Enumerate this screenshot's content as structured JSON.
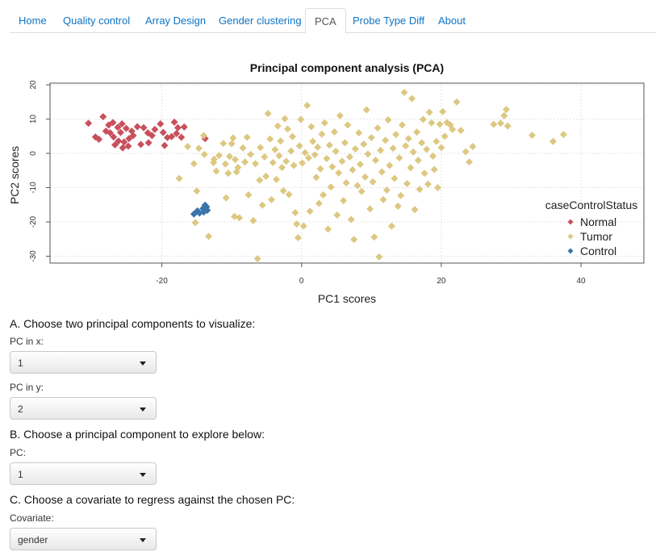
{
  "tabs": [
    {
      "label": "Home",
      "active": false
    },
    {
      "label": "Quality control",
      "active": false
    },
    {
      "label": "Array Design",
      "active": false
    },
    {
      "label": "Gender clustering",
      "active": false
    },
    {
      "label": "PCA",
      "active": true
    },
    {
      "label": "Probe Type Diff",
      "active": false
    },
    {
      "label": "About",
      "active": false
    }
  ],
  "controls": {
    "section_a": "A. Choose two principal components to visualize:",
    "pc_x_label": "PC in x:",
    "pc_x_value": "1",
    "pc_y_label": "PC in y:",
    "pc_y_value": "2",
    "section_b": "B. Choose a principal component to explore below:",
    "pc_label": "PC:",
    "pc_value": "1",
    "section_c": "C. Choose a covariate to regress against the chosen PC:",
    "covariate_label": "Covariate:",
    "covariate_value": "gender"
  },
  "chart_data": {
    "type": "scatter",
    "title": "Principal component analysis (PCA)",
    "xlabel": "PC1 scores",
    "ylabel": "PC2 scores",
    "xlim": [
      -36,
      49
    ],
    "ylim": [
      -32,
      20.5
    ],
    "xticks": [
      -20,
      0,
      20,
      40
    ],
    "yticks": [
      -30,
      -20,
      -10,
      0,
      10,
      20
    ],
    "grid": true,
    "legend": {
      "title": "caseControlStatus",
      "placement": "right"
    },
    "series": [
      {
        "name": "Normal",
        "color": "#c8505c",
        "points": [
          [
            -30.5,
            8.8
          ],
          [
            -28.4,
            10.7
          ],
          [
            -29.5,
            4.8
          ],
          [
            -29.0,
            4.1
          ],
          [
            -28.0,
            6.5
          ],
          [
            -27.6,
            8.3
          ],
          [
            -27.0,
            9.0
          ],
          [
            -26.3,
            7.6
          ],
          [
            -25.7,
            8.6
          ],
          [
            -25.1,
            7.3
          ],
          [
            -26.9,
            4.8
          ],
          [
            -26.2,
            3.6
          ],
          [
            -25.4,
            3.3
          ],
          [
            -24.7,
            4.3
          ],
          [
            -24.1,
            5.2
          ],
          [
            -25.9,
            6.1
          ],
          [
            -27.4,
            6.0
          ],
          [
            -26.7,
            2.5
          ],
          [
            -25.6,
            1.6
          ],
          [
            -24.8,
            2.1
          ],
          [
            -24.3,
            6.5
          ],
          [
            -23.5,
            7.8
          ],
          [
            -22.6,
            7.5
          ],
          [
            -22.0,
            6.0
          ],
          [
            -21.4,
            5.2
          ],
          [
            -21.0,
            7.0
          ],
          [
            -20.2,
            8.6
          ],
          [
            -19.8,
            6.1
          ],
          [
            -19.2,
            4.6
          ],
          [
            -21.9,
            3.1
          ],
          [
            -23.0,
            2.6
          ],
          [
            -19.6,
            2.3
          ],
          [
            -18.2,
            9.1
          ],
          [
            -17.7,
            7.5
          ],
          [
            -18.6,
            4.9
          ],
          [
            -17.9,
            5.8
          ],
          [
            -17.2,
            4.7
          ],
          [
            -16.8,
            7.7
          ],
          [
            -13.8,
            4.3
          ]
        ]
      },
      {
        "name": "Tumor",
        "color": "#ddc882",
        "points": [
          [
            -17.5,
            -7.3
          ],
          [
            -16.3,
            2.0
          ],
          [
            -15.4,
            -3.0
          ],
          [
            -15.0,
            -11.0
          ],
          [
            -15.2,
            -20.2
          ],
          [
            -14.7,
            1.5
          ],
          [
            -14.0,
            5.2
          ],
          [
            -13.9,
            -0.3
          ],
          [
            -13.3,
            -24.2
          ],
          [
            -12.5,
            -1.7
          ],
          [
            -12.2,
            -5.2
          ],
          [
            -12.6,
            -2.7
          ],
          [
            -11.8,
            -0.6
          ],
          [
            -11.2,
            2.9
          ],
          [
            -10.9,
            -3.1
          ],
          [
            -10.5,
            -5.8
          ],
          [
            -10.3,
            -0.9
          ],
          [
            -10.8,
            -13.0
          ],
          [
            -10.0,
            2.8
          ],
          [
            -9.6,
            -18.4
          ],
          [
            -9.3,
            -5.4
          ],
          [
            -9.5,
            -1.8
          ],
          [
            -9.8,
            4.5
          ],
          [
            -9.1,
            -4.1
          ],
          [
            -8.9,
            -18.8
          ],
          [
            -8.4,
            1.6
          ],
          [
            -8.1,
            -2.5
          ],
          [
            -7.8,
            4.7
          ],
          [
            -7.6,
            -12.1
          ],
          [
            -7.3,
            -0.3
          ],
          [
            -6.9,
            -19.6
          ],
          [
            -6.6,
            -3.0
          ],
          [
            -6.3,
            -30.7
          ],
          [
            -6.0,
            -7.8
          ],
          [
            -5.9,
            1.7
          ],
          [
            -5.6,
            -15.1
          ],
          [
            -5.3,
            -1.0
          ],
          [
            -5.1,
            -6.7
          ],
          [
            -4.8,
            11.6
          ],
          [
            -4.5,
            4.2
          ],
          [
            -4.3,
            -13.5
          ],
          [
            -4.1,
            -2.7
          ],
          [
            -3.8,
            1.1
          ],
          [
            -3.6,
            -7.6
          ],
          [
            -3.4,
            8.0
          ],
          [
            -3.2,
            -0.7
          ],
          [
            -3.0,
            3.6
          ],
          [
            -2.8,
            -4.1
          ],
          [
            -2.6,
            -10.9
          ],
          [
            -2.4,
            10.1
          ],
          [
            -2.2,
            -2.3
          ],
          [
            -2.0,
            7.1
          ],
          [
            -1.8,
            -12.0
          ],
          [
            -1.5,
            0.7
          ],
          [
            -1.3,
            4.9
          ],
          [
            -1.1,
            -3.5
          ],
          [
            -0.9,
            -17.3
          ],
          [
            -0.7,
            -20.6
          ],
          [
            -0.5,
            -24.6
          ],
          [
            -0.3,
            2.2
          ],
          [
            -0.1,
            9.9
          ],
          [
            0.1,
            -2.8
          ],
          [
            0.3,
            -21.2
          ],
          [
            0.5,
            0.2
          ],
          [
            0.8,
            14.0
          ],
          [
            1.0,
            -1.3
          ],
          [
            1.2,
            -16.9
          ],
          [
            1.4,
            7.8
          ],
          [
            1.6,
            3.5
          ],
          [
            1.9,
            -0.4
          ],
          [
            2.1,
            -7.0
          ],
          [
            2.3,
            1.8
          ],
          [
            2.5,
            -14.6
          ],
          [
            2.7,
            -4.5
          ],
          [
            2.9,
            5.6
          ],
          [
            3.1,
            -12.1
          ],
          [
            3.3,
            8.9
          ],
          [
            3.6,
            -1.5
          ],
          [
            3.8,
            -22.1
          ],
          [
            4.0,
            2.4
          ],
          [
            4.2,
            -9.8
          ],
          [
            4.4,
            -3.9
          ],
          [
            4.7,
            6.3
          ],
          [
            4.9,
            0.6
          ],
          [
            5.1,
            -18.0
          ],
          [
            5.3,
            -5.7
          ],
          [
            5.5,
            11.0
          ],
          [
            5.8,
            -2.3
          ],
          [
            6.0,
            -13.8
          ],
          [
            6.2,
            3.1
          ],
          [
            6.4,
            -8.6
          ],
          [
            6.6,
            8.3
          ],
          [
            6.9,
            -1.0
          ],
          [
            7.1,
            -19.3
          ],
          [
            7.3,
            -4.8
          ],
          [
            7.5,
            -25.1
          ],
          [
            7.7,
            1.3
          ],
          [
            8.0,
            -9.4
          ],
          [
            8.2,
            6.0
          ],
          [
            8.4,
            -3.2
          ],
          [
            8.6,
            -11.1
          ],
          [
            8.9,
            2.7
          ],
          [
            9.1,
            -6.9
          ],
          [
            9.3,
            12.7
          ],
          [
            9.5,
            -0.2
          ],
          [
            9.8,
            -16.2
          ],
          [
            10.0,
            4.6
          ],
          [
            10.2,
            -8.3
          ],
          [
            10.4,
            -24.4
          ],
          [
            10.6,
            -2.0
          ],
          [
            10.9,
            7.4
          ],
          [
            11.1,
            -30.2
          ],
          [
            11.3,
            0.9
          ],
          [
            11.5,
            -5.4
          ],
          [
            11.7,
            -13.5
          ],
          [
            12.0,
            3.8
          ],
          [
            12.2,
            -10.7
          ],
          [
            12.4,
            9.8
          ],
          [
            12.6,
            -3.5
          ],
          [
            12.9,
            -21.2
          ],
          [
            13.1,
            1.5
          ],
          [
            13.3,
            -7.3
          ],
          [
            13.5,
            5.5
          ],
          [
            13.8,
            -15.4
          ],
          [
            14.0,
            -1.3
          ],
          [
            14.2,
            -12.3
          ],
          [
            14.4,
            8.3
          ],
          [
            14.7,
            17.8
          ],
          [
            14.9,
            2.2
          ],
          [
            15.1,
            -8.8
          ],
          [
            15.3,
            4.3
          ],
          [
            15.6,
            -4.2
          ],
          [
            15.8,
            16.0
          ],
          [
            16.0,
            0.4
          ],
          [
            16.2,
            -16.4
          ],
          [
            16.5,
            6.2
          ],
          [
            16.7,
            -2.0
          ],
          [
            16.9,
            -10.5
          ],
          [
            17.2,
            3.1
          ],
          [
            17.4,
            9.9
          ],
          [
            17.6,
            -5.8
          ],
          [
            17.9,
            1.2
          ],
          [
            18.1,
            -9.0
          ],
          [
            18.3,
            12.0
          ],
          [
            18.6,
            8.9
          ],
          [
            18.8,
            -0.8
          ],
          [
            19.0,
            -4.7
          ],
          [
            19.3,
            3.5
          ],
          [
            19.5,
            -10.0
          ],
          [
            19.8,
            8.5
          ],
          [
            20.0,
            1.7
          ],
          [
            20.2,
            12.2
          ],
          [
            20.5,
            5.0
          ],
          [
            20.8,
            9.0
          ],
          [
            21.3,
            8.3
          ],
          [
            21.6,
            7.0
          ],
          [
            22.2,
            15.0
          ],
          [
            22.8,
            6.7
          ],
          [
            23.5,
            0.5
          ],
          [
            24.0,
            -2.5
          ],
          [
            24.5,
            2.0
          ],
          [
            27.5,
            8.5
          ],
          [
            28.5,
            8.8
          ],
          [
            29.0,
            11.0
          ],
          [
            29.3,
            12.8
          ],
          [
            29.5,
            8.0
          ],
          [
            33.0,
            5.3
          ],
          [
            36.0,
            3.5
          ],
          [
            37.5,
            5.5
          ]
        ]
      },
      {
        "name": "Control",
        "color": "#3a75aa",
        "points": [
          [
            -15.4,
            -17.7
          ],
          [
            -14.9,
            -16.8
          ],
          [
            -14.6,
            -17.4
          ],
          [
            -14.1,
            -16.1
          ],
          [
            -13.8,
            -15.1
          ],
          [
            -13.5,
            -16.6
          ],
          [
            -14.0,
            -17.1
          ],
          [
            -13.6,
            -15.6
          ]
        ]
      }
    ]
  }
}
